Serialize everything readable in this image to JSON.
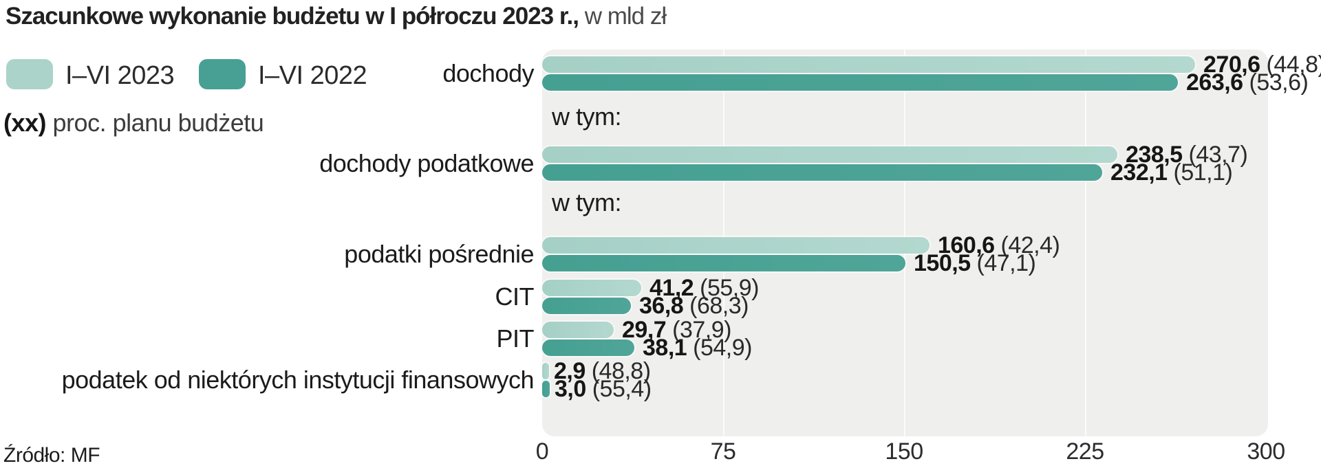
{
  "title": {
    "bold": "Szacunkowe wykonanie budżetu w I półroczu 2023 r.,",
    "regular": " w mld zł"
  },
  "legend": {
    "items": [
      {
        "name": "2023",
        "label": "I–VI 2023",
        "color": "#abd3c9"
      },
      {
        "name": "2022",
        "label": "I–VI 2022",
        "color": "#47a093"
      }
    ],
    "note_prefix": "(xx)",
    "note_text": " proc. planu budżetu"
  },
  "source": "Źródło: MF",
  "chart_data": {
    "type": "bar",
    "orientation": "horizontal",
    "title": "Szacunkowe wykonanie budżetu w I półroczu 2023 r., w mld zł",
    "unit": "mld zł",
    "series": [
      "I–VI 2023",
      "I–VI 2022"
    ],
    "series_colors": [
      "#abd3c9",
      "#47a093"
    ],
    "values_in_parentheses": "proc. planu budżetu",
    "xlim": [
      0,
      300
    ],
    "ticks": [
      0,
      75,
      150,
      225,
      300
    ],
    "grid": true,
    "legend_position": "top-left",
    "plot_background": "#efefee",
    "rows": [
      {
        "type": "pair",
        "label": "dochody",
        "v2023": 270.6,
        "v2023_label": "270,6",
        "p2023": "(44,8)",
        "v2022": 263.6,
        "v2022_label": "263,6",
        "p2022": "(53,6)"
      },
      {
        "type": "note",
        "label": "w tym:"
      },
      {
        "type": "pair",
        "label": "dochody podatkowe",
        "v2023": 238.5,
        "v2023_label": "238,5",
        "p2023": "(43,7)",
        "v2022": 232.1,
        "v2022_label": "232,1",
        "p2022": "(51,1)"
      },
      {
        "type": "note",
        "label": "w tym:"
      },
      {
        "type": "pair",
        "label": "podatki pośrednie",
        "v2023": 160.6,
        "v2023_label": "160,6",
        "p2023": "(42,4)",
        "v2022": 150.5,
        "v2022_label": "150,5",
        "p2022": "(47,1)"
      },
      {
        "type": "pair",
        "label": "CIT",
        "v2023": 41.2,
        "v2023_label": "41,2",
        "p2023": "(55,9)",
        "v2022": 36.8,
        "v2022_label": "36,8",
        "p2022": "(68,3)"
      },
      {
        "type": "pair",
        "label": "PIT",
        "v2023": 29.7,
        "v2023_label": "29,7",
        "p2023": "(37,9)",
        "v2022": 38.1,
        "v2022_label": "38,1",
        "p2022": "(54,9)"
      },
      {
        "type": "pair",
        "label": "podatek od niektórych instytucji finansowych",
        "v2023": 2.9,
        "v2023_label": "2,9",
        "p2023": "(48,8)",
        "v2022": 3.0,
        "v2022_label": "3,0",
        "p2022": "(55,4)"
      }
    ],
    "source": "Źródło: MF"
  }
}
